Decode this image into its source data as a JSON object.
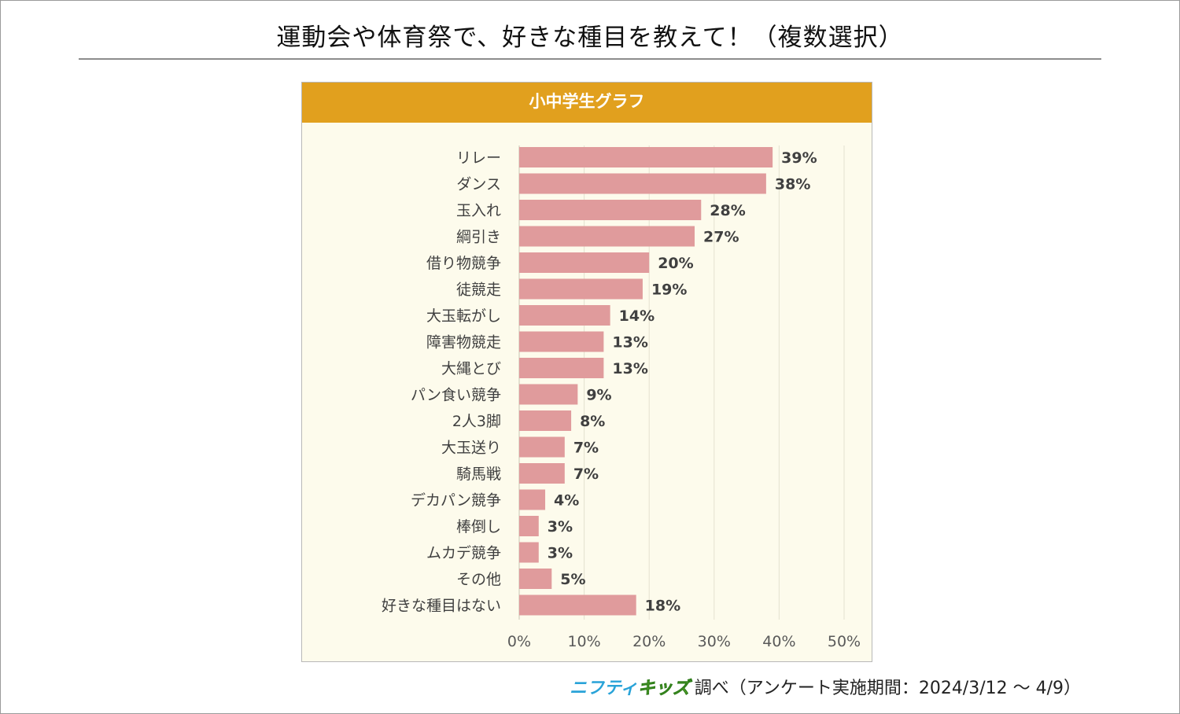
{
  "title": "運動会や体育祭で、好きな種目を教えて！（複数選択）",
  "colors": {
    "header": "#e1a01e",
    "bar": "#e09b9c",
    "panel_bg": "#fdfbec",
    "grid": "#e4e1cf"
  },
  "chart_data": {
    "type": "bar",
    "orientation": "horizontal",
    "title": "小中学生グラフ",
    "categories": [
      "リレー",
      "ダンス",
      "玉入れ",
      "綱引き",
      "借り物競争",
      "徒競走",
      "大玉転がし",
      "障害物競走",
      "大縄とび",
      "パン食い競争",
      "2人3脚",
      "大玉送り",
      "騎馬戦",
      "デカパン競争",
      "棒倒し",
      "ムカデ競争",
      "その他",
      "好きな種目はない"
    ],
    "values": [
      39,
      38,
      28,
      27,
      20,
      19,
      14,
      13,
      13,
      9,
      8,
      7,
      7,
      4,
      3,
      3,
      5,
      18
    ],
    "value_labels": [
      "39%",
      "38%",
      "28%",
      "27%",
      "20%",
      "19%",
      "14%",
      "13%",
      "13%",
      "9%",
      "8%",
      "7%",
      "7%",
      "4%",
      "3%",
      "3%",
      "5%",
      "18%"
    ],
    "xlim": [
      0,
      50
    ],
    "xticks": [
      "0%",
      "10%",
      "20%",
      "30%",
      "40%",
      "50%"
    ],
    "grid": true
  },
  "footer": {
    "logo_part1": "ニフティ",
    "logo_part2": "キッズ",
    "note": "調べ（アンケート実施期間：2024/3/12 ～ 4/9）"
  }
}
